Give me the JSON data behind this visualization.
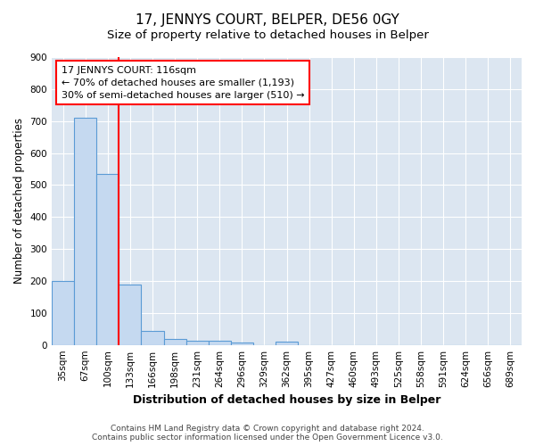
{
  "title": "17, JENNYS COURT, BELPER, DE56 0GY",
  "subtitle": "Size of property relative to detached houses in Belper",
  "xlabel": "Distribution of detached houses by size in Belper",
  "ylabel": "Number of detached properties",
  "categories": [
    "35sqm",
    "67sqm",
    "100sqm",
    "133sqm",
    "166sqm",
    "198sqm",
    "231sqm",
    "264sqm",
    "296sqm",
    "329sqm",
    "362sqm",
    "395sqm",
    "427sqm",
    "460sqm",
    "493sqm",
    "525sqm",
    "558sqm",
    "591sqm",
    "624sqm",
    "656sqm",
    "689sqm"
  ],
  "values": [
    200,
    710,
    535,
    190,
    45,
    18,
    13,
    12,
    7,
    0,
    10,
    0,
    0,
    0,
    0,
    0,
    0,
    0,
    0,
    0,
    0
  ],
  "bar_color": "#c5d9f0",
  "bar_edge_color": "#5b9bd5",
  "red_line_x": 2.5,
  "annotation_line1": "17 JENNYS COURT: 116sqm",
  "annotation_line2": "← 70% of detached houses are smaller (1,193)",
  "annotation_line3": "30% of semi-detached houses are larger (510) →",
  "annotation_box_color": "white",
  "annotation_box_edge": "red",
  "ylim": [
    0,
    900
  ],
  "yticks": [
    0,
    100,
    200,
    300,
    400,
    500,
    600,
    700,
    800,
    900
  ],
  "footer_text": "Contains HM Land Registry data © Crown copyright and database right 2024.\nContains public sector information licensed under the Open Government Licence v3.0.",
  "fig_background": "white",
  "plot_bg_color": "#dce6f1",
  "grid_color": "white",
  "title_fontsize": 11,
  "subtitle_fontsize": 9.5,
  "xlabel_fontsize": 9,
  "ylabel_fontsize": 8.5,
  "tick_fontsize": 7.5,
  "annotation_fontsize": 8,
  "footer_fontsize": 6.5
}
